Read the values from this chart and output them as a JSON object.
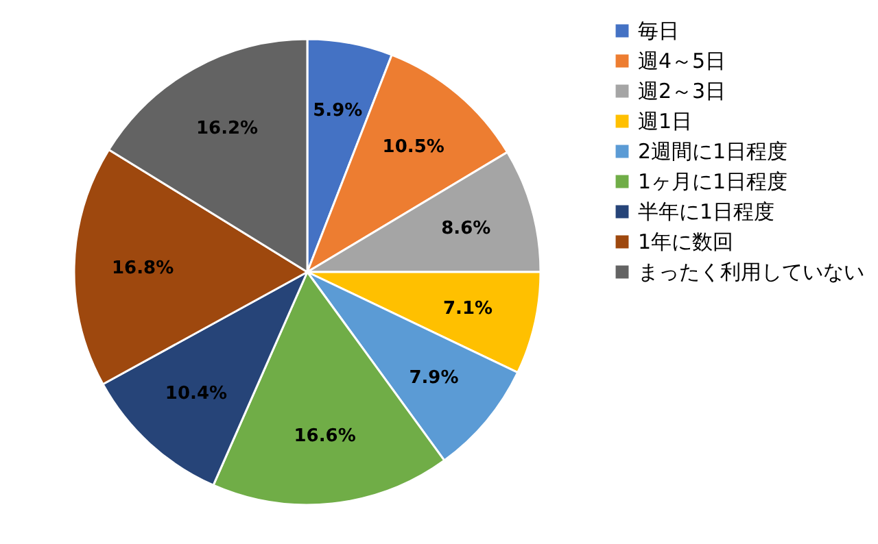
{
  "chart_data": {
    "type": "pie",
    "categories": [
      "毎日",
      "週4～5日",
      "週2～3日",
      "週1日",
      "2週間に1日程度",
      "1ヶ月に1日程度",
      "半年に1日程度",
      "1年に数回",
      "まったく利用していない"
    ],
    "values": [
      5.9,
      10.5,
      8.6,
      7.1,
      7.9,
      16.6,
      10.4,
      16.8,
      16.2
    ],
    "colors": [
      "#4472c4",
      "#ed7d31",
      "#a5a5a5",
      "#ffc000",
      "#5b9bd5",
      "#70ad47",
      "#264478",
      "#9e480e",
      "#636363"
    ],
    "value_labels": [
      "5.9%",
      "10.5%",
      "8.6%",
      "7.1%",
      "7.9%",
      "16.6%",
      "10.4%",
      "16.8%",
      "16.2%"
    ],
    "legend": "right"
  }
}
